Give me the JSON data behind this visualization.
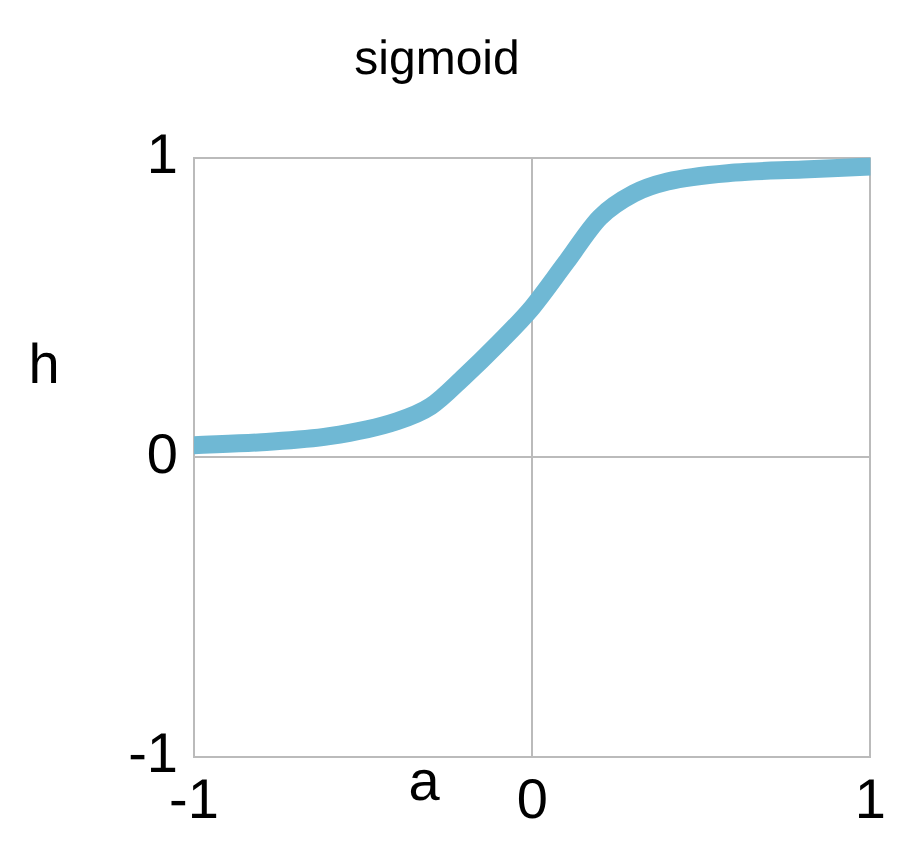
{
  "chart_data": {
    "type": "line",
    "title": "sigmoid",
    "xlabel": "a",
    "ylabel": "h",
    "x": [
      -1,
      -0.8,
      -0.6,
      -0.4,
      -0.3,
      -0.2,
      -0.1,
      0,
      0.1,
      0.2,
      0.3,
      0.4,
      0.6,
      0.8,
      1
    ],
    "series": [
      {
        "color": "#6fb8d4",
        "values": [
          0.04,
          0.05,
          0.07,
          0.12,
          0.17,
          0.27,
          0.38,
          0.5,
          0.65,
          0.8,
          0.88,
          0.92,
          0.95,
          0.96,
          0.97
        ]
      }
    ],
    "xlim": [
      -1,
      1
    ],
    "ylim": [
      -1,
      1
    ],
    "xticks": [
      -1,
      0,
      1
    ],
    "yticks": [
      -1,
      0,
      1
    ],
    "grid": true,
    "legend": false,
    "marker": "none",
    "line_style": "solid"
  }
}
